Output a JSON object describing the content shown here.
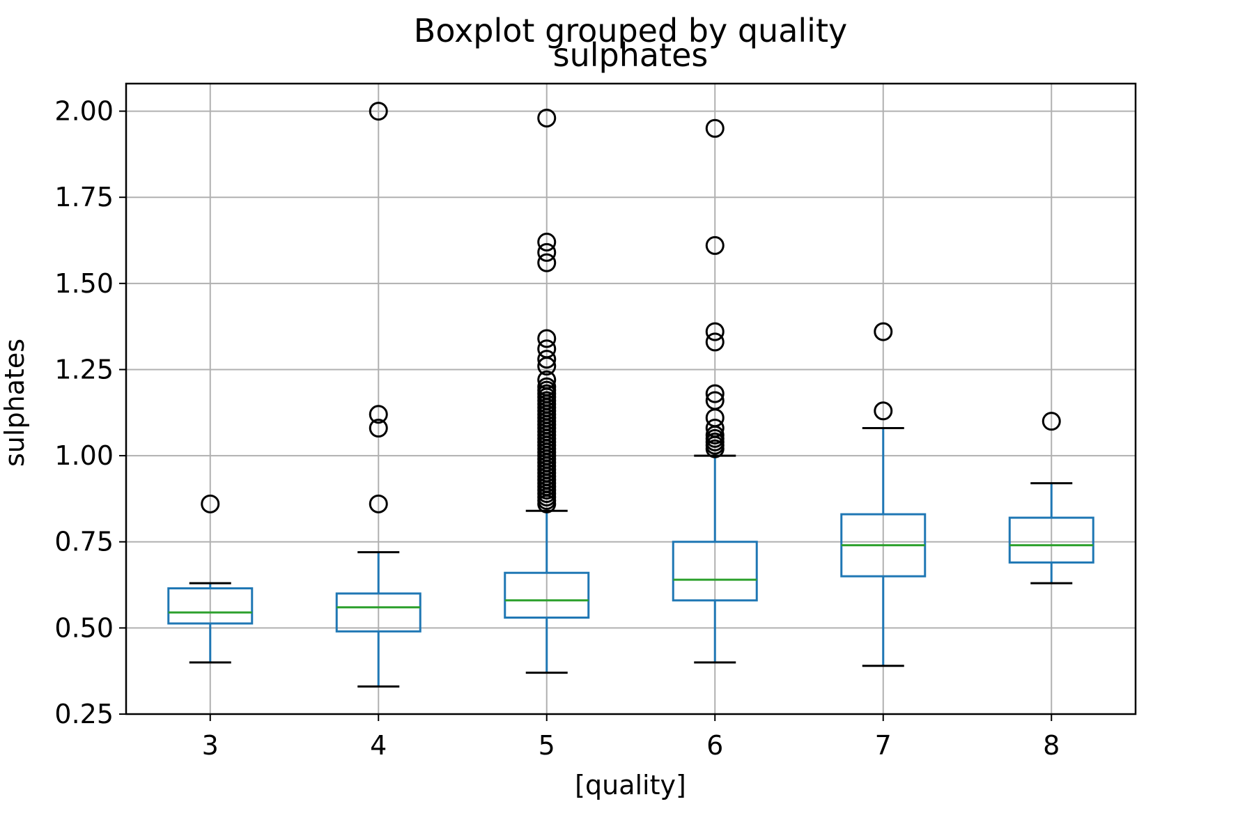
{
  "chart_data": {
    "type": "boxplot",
    "suptitle": "Boxplot grouped by quality",
    "title": "sulphates",
    "xlabel": "[quality]",
    "ylabel": "sulphates",
    "ylim": [
      0.25,
      2.08
    ],
    "yticks": [
      {
        "value": 0.25,
        "label": "0.25"
      },
      {
        "value": 0.5,
        "label": "0.50"
      },
      {
        "value": 0.75,
        "label": "0.75"
      },
      {
        "value": 1.0,
        "label": "1.00"
      },
      {
        "value": 1.25,
        "label": "1.25"
      },
      {
        "value": 1.5,
        "label": "1.50"
      },
      {
        "value": 1.75,
        "label": "1.75"
      },
      {
        "value": 2.0,
        "label": "2.00"
      }
    ],
    "grid": true,
    "categories": [
      "3",
      "4",
      "5",
      "6",
      "7",
      "8"
    ],
    "boxes": [
      {
        "category": "3",
        "whislo": 0.4,
        "q1": 0.513,
        "median": 0.545,
        "q3": 0.615,
        "whishi": 0.63,
        "fliers": [
          0.86
        ]
      },
      {
        "category": "4",
        "whislo": 0.33,
        "q1": 0.49,
        "median": 0.56,
        "q3": 0.6,
        "whishi": 0.72,
        "fliers": [
          0.86,
          1.08,
          1.12,
          2.0
        ]
      },
      {
        "category": "5",
        "whislo": 0.37,
        "q1": 0.53,
        "median": 0.58,
        "q3": 0.66,
        "whishi": 0.84,
        "fliers": [
          0.86,
          0.87,
          0.88,
          0.89,
          0.9,
          0.91,
          0.92,
          0.93,
          0.94,
          0.95,
          0.96,
          0.97,
          0.98,
          0.99,
          1.0,
          1.01,
          1.02,
          1.03,
          1.04,
          1.05,
          1.06,
          1.07,
          1.08,
          1.09,
          1.1,
          1.11,
          1.12,
          1.13,
          1.14,
          1.15,
          1.16,
          1.17,
          1.18,
          1.19,
          1.2,
          1.22,
          1.26,
          1.28,
          1.31,
          1.34,
          1.56,
          1.59,
          1.62,
          1.98
        ]
      },
      {
        "category": "6",
        "whislo": 0.4,
        "q1": 0.58,
        "median": 0.64,
        "q3": 0.75,
        "whishi": 1.0,
        "fliers": [
          1.02,
          1.03,
          1.04,
          1.05,
          1.06,
          1.08,
          1.11,
          1.16,
          1.18,
          1.33,
          1.36,
          1.61,
          1.95
        ]
      },
      {
        "category": "7",
        "whislo": 0.39,
        "q1": 0.65,
        "median": 0.74,
        "q3": 0.83,
        "whishi": 1.08,
        "fliers": [
          1.13,
          1.36
        ]
      },
      {
        "category": "8",
        "whislo": 0.63,
        "q1": 0.69,
        "median": 0.74,
        "q3": 0.82,
        "whishi": 0.92,
        "fliers": [
          1.1
        ]
      }
    ],
    "colors": {
      "box": "#1f77b4",
      "median": "#2ca02c",
      "whisker": "#1f77b4",
      "cap": "#000000",
      "flier": "#000000",
      "grid": "#b0b0b0",
      "axes": "#000000"
    }
  }
}
